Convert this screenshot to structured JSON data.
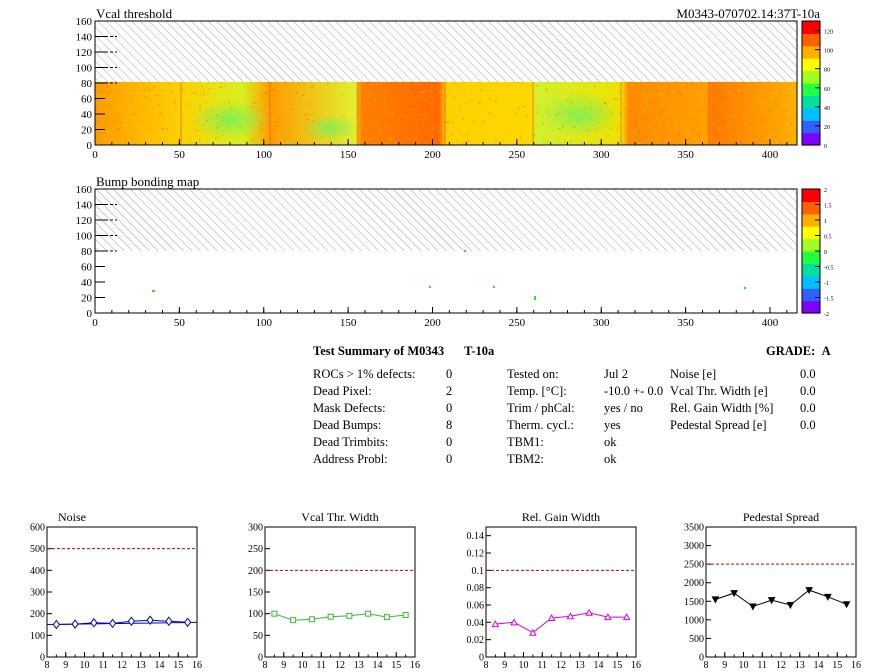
{
  "module_id": "M0343-070702.14:37T-10a",
  "maps": [
    {
      "title": "Vcal threshold",
      "x_ticks": [
        "0",
        "50",
        "100",
        "150",
        "200",
        "250",
        "300",
        "350",
        "400"
      ],
      "y_ticks": [
        "0",
        "20",
        "40",
        "60",
        "80",
        "100",
        "120",
        "140",
        "160"
      ],
      "colorbar_ticks": [
        "0",
        "20",
        "40",
        "60",
        "80",
        "100",
        "120"
      ],
      "colorbar_colors": [
        "#8000ff",
        "#3060ff",
        "#00c0ff",
        "#00e0a0",
        "#20ff40",
        "#a0ff20",
        "#ffff00",
        "#ffb000",
        "#ff6000",
        "#ff0000"
      ]
    },
    {
      "title": "Bump bonding map",
      "x_ticks": [
        "0",
        "50",
        "100",
        "150",
        "200",
        "250",
        "300",
        "350",
        "400"
      ],
      "y_ticks": [
        "0",
        "20",
        "40",
        "60",
        "80",
        "100",
        "120",
        "140",
        "160"
      ],
      "colorbar_ticks": [
        "-2",
        "-1.5",
        "-1",
        "-0.5",
        "0",
        "0.5",
        "1",
        "1.5",
        "2"
      ],
      "colorbar_colors": [
        "#8000ff",
        "#3060ff",
        "#00c0ff",
        "#00e0a0",
        "#20ff40",
        "#a0ff20",
        "#ffff00",
        "#ffb000",
        "#ff6000",
        "#ff0000"
      ]
    }
  ],
  "summary": {
    "title": "Test Summary of M0343",
    "tag": "T-10a",
    "grade_label": "GRADE:",
    "grade_value": "A",
    "col1": [
      {
        "label": "ROCs > 1% defects:",
        "value": "0"
      },
      {
        "label": "Dead Pixel:",
        "value": "2"
      },
      {
        "label": "Mask Defects:",
        "value": "0"
      },
      {
        "label": "Dead Bumps:",
        "value": "8"
      },
      {
        "label": "Dead Trimbits:",
        "value": "0"
      },
      {
        "label": "Address Probl:",
        "value": "0"
      }
    ],
    "col2": [
      {
        "label": "Tested on:",
        "value": "Jul 2"
      },
      {
        "label": "Temp. [°C]:",
        "value": "-10.0 +- 0.0"
      },
      {
        "label": "Trim / phCal:",
        "value": "yes / no"
      },
      {
        "label": "Therm. cycl.:",
        "value": "yes"
      },
      {
        "label": "TBM1:",
        "value": "ok"
      },
      {
        "label": "TBM2:",
        "value": "ok"
      }
    ],
    "col3": [
      {
        "label": "Noise [e]",
        "value": "0.0"
      },
      {
        "label": "Vcal Thr. Width [e]",
        "value": "0.0"
      },
      {
        "label": "Rel. Gain Width [%]",
        "value": "0.0"
      },
      {
        "label": "Pedestal Spread [e]",
        "value": "0.0"
      }
    ]
  },
  "chart_data": [
    {
      "type": "line",
      "title": "Noise",
      "x": [
        8.5,
        9.5,
        10.5,
        11.5,
        12.5,
        13.5,
        14.5,
        15.5
      ],
      "values": [
        150,
        152,
        158,
        155,
        165,
        170,
        165,
        160
      ],
      "xlim": [
        8,
        16
      ],
      "ylim": [
        0,
        600
      ],
      "y_ticks": [
        "0",
        "100",
        "200",
        "300",
        "400",
        "500",
        "600"
      ],
      "x_ticks": [
        "8",
        "9",
        "10",
        "11",
        "12",
        "13",
        "14",
        "15",
        "16"
      ],
      "reference_line": 500,
      "color": "#0000cc",
      "marker": "diamond-open"
    },
    {
      "type": "line",
      "title": "Vcal Thr. Width",
      "x": [
        8.5,
        9.5,
        10.5,
        11.5,
        12.5,
        13.5,
        14.5,
        15.5
      ],
      "values": [
        100,
        85,
        87,
        93,
        95,
        100,
        92,
        97
      ],
      "xlim": [
        8,
        16
      ],
      "ylim": [
        0,
        300
      ],
      "y_ticks": [
        "0",
        "50",
        "100",
        "150",
        "200",
        "250",
        "300"
      ],
      "x_ticks": [
        "8",
        "9",
        "10",
        "11",
        "12",
        "13",
        "14",
        "15",
        "16"
      ],
      "reference_line": 200,
      "color": "#33bb33",
      "marker": "square-open"
    },
    {
      "type": "line",
      "title": "Rel. Gain Width",
      "x": [
        8.5,
        9.5,
        10.5,
        11.5,
        12.5,
        13.5,
        14.5,
        15.5
      ],
      "values": [
        0.038,
        0.04,
        0.028,
        0.045,
        0.047,
        0.051,
        0.046,
        0.046
      ],
      "xlim": [
        8,
        16
      ],
      "ylim": [
        0,
        0.15
      ],
      "y_ticks": [
        "0",
        "0.02",
        "0.04",
        "0.06",
        "0.08",
        "0.1",
        "0.12",
        "0.14"
      ],
      "x_ticks": [
        "8",
        "9",
        "10",
        "11",
        "12",
        "13",
        "14",
        "15",
        "16"
      ],
      "reference_line": 0.1,
      "color": "#dd00dd",
      "marker": "triangle-open"
    },
    {
      "type": "line",
      "title": "Pedestal Spread",
      "x": [
        8.5,
        9.5,
        10.5,
        11.5,
        12.5,
        13.5,
        14.5,
        15.5
      ],
      "values": [
        1550,
        1720,
        1360,
        1530,
        1400,
        1800,
        1620,
        1420
      ],
      "xlim": [
        8,
        16
      ],
      "ylim": [
        0,
        3500
      ],
      "y_ticks": [
        "0",
        "500",
        "1000",
        "1500",
        "2000",
        "2500",
        "3000",
        "3500"
      ],
      "x_ticks": [
        "8",
        "9",
        "10",
        "11",
        "12",
        "13",
        "14",
        "15",
        "16"
      ],
      "reference_line": 2500,
      "color": "#000000",
      "marker": "triangle-down"
    }
  ]
}
